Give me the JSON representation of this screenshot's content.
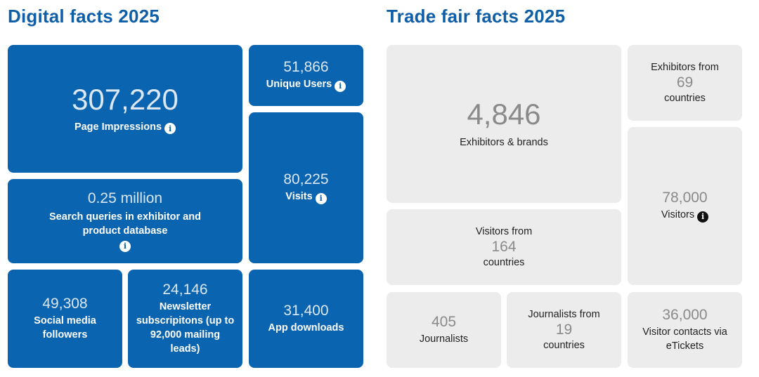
{
  "digital": {
    "title": "Digital facts 2025",
    "page_impressions": {
      "value": "307,220",
      "label": "Page Impressions"
    },
    "unique_users": {
      "value": "51,866",
      "label": "Unique Users"
    },
    "search_queries": {
      "value": "0.25 million",
      "label": "Search queries in exhibitor and product database"
    },
    "visits": {
      "value": "80,225",
      "label": "Visits"
    },
    "social_media": {
      "value": "49,308",
      "label": "Social media followers"
    },
    "newsletter": {
      "value": "24,146",
      "label": "Newsletter subscripitons (up to 92,000 mailing leads)"
    },
    "app_downloads": {
      "value": "31,400",
      "label": "App downloads"
    }
  },
  "trade_fair": {
    "title": "Trade fair facts 2025",
    "exhibitors_brands": {
      "value": "4,846",
      "label": "Exhibitors & brands"
    },
    "exhibitors_from": {
      "prefix": "Exhibitors from",
      "value": "69",
      "suffix": "countries"
    },
    "visitors_from": {
      "prefix": "Visitors from",
      "value": "164",
      "suffix": "countries"
    },
    "visitors": {
      "value": "78,000",
      "label": "Visitors"
    },
    "journalists": {
      "value": "405",
      "label": "Journalists"
    },
    "journalists_from": {
      "prefix": "Journalists from",
      "value": "19",
      "suffix": "countries"
    },
    "visitor_contacts": {
      "value": "36,000",
      "label": "Visitor contacts via eTickets"
    }
  },
  "info_glyph": "i",
  "colors": {
    "brand_blue": "#0a64b0",
    "title_blue": "#0f5fa8",
    "grey_tile": "#ececec"
  }
}
